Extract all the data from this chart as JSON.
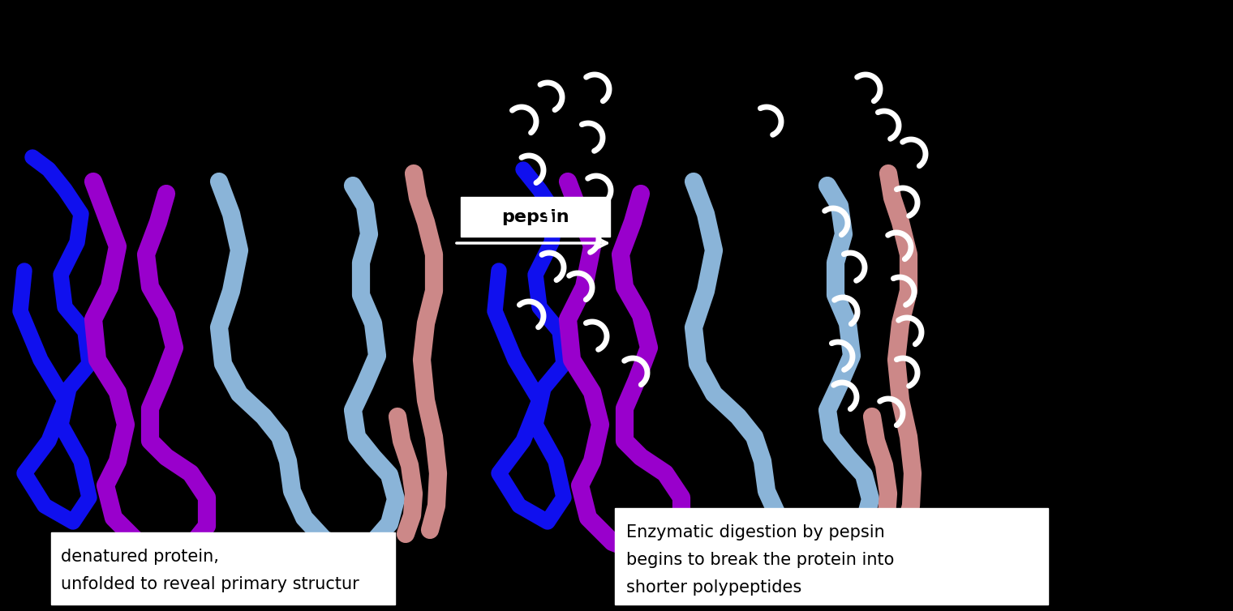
{
  "background_color": "#000000",
  "pepsin_label": "pepsin",
  "left_label_line1": "denatured protein,",
  "left_label_line2": "unfolded to reveal primary structur",
  "right_label_line1": "Enzymatic digestion by pepsin",
  "right_label_line2": "begins to break the protein into",
  "right_label_line3": "shorter polypeptides",
  "colors": {
    "blue": "#1010ee",
    "purple": "#9900cc",
    "light_blue": "#8ab4d8",
    "pink": "#cc8888"
  },
  "linewidth": 14
}
